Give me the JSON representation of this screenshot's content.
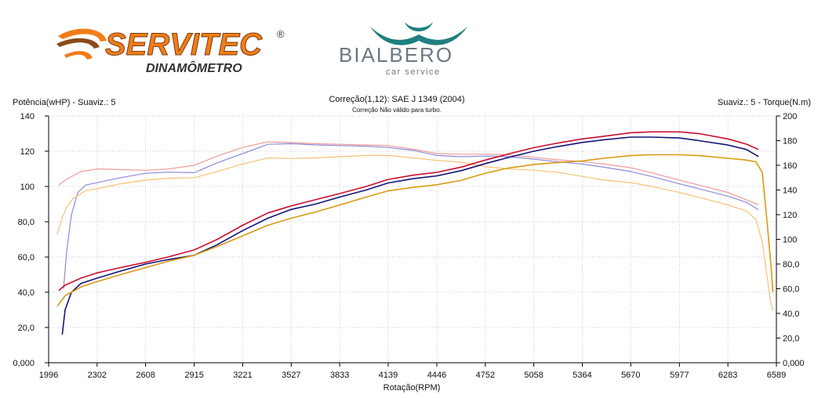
{
  "logos": {
    "servitec_name": "SERVITEC",
    "servitec_reg": "®",
    "servitec_sub": "DINAMÔMETRO",
    "bialbero_name": "BIALBERO",
    "bialbero_sub": "car service"
  },
  "header": {
    "left_label": "Potência(wHP) - Suaviz.: 5",
    "right_label": "Suaviz.: 5 - Torque(N.m)",
    "correction": "Correção(1,12): SAE J 1349 (2004)",
    "correction_note": "Correção Não válido para turbo."
  },
  "colors": {
    "power_run1": "#c8102e",
    "power_run2": "#14147a",
    "power_run3": "#d99a14",
    "torque_run1": "#f0989a",
    "torque_run2": "#8c8cd8",
    "torque_run3": "#f5c272",
    "grid": "#cccccc",
    "servitec_orange": "#f07d1a",
    "bialbero_teal": "#1f7f7f",
    "bialbero_gray": "#6c7883"
  },
  "chart_data": {
    "type": "line",
    "xlabel": "Rotação(RPM)",
    "ylabel": "Potência(wHP) - Suaviz.: 5",
    "y2label": "Suaviz.: 5 - Torque(N.m)",
    "xlim": [
      1996,
      6589
    ],
    "ylim": [
      0,
      140
    ],
    "y2lim": [
      0,
      200
    ],
    "grid": true,
    "x_ticks": [
      "1996",
      "2302",
      "2608",
      "2915",
      "3221",
      "3527",
      "3833",
      "4139",
      "4446",
      "4752",
      "5058",
      "5364",
      "5670",
      "5977",
      "6283",
      "6589"
    ],
    "y_ticks": [
      "0,000",
      "20,0",
      "40,0",
      "60,0",
      "80,0",
      "100",
      "120",
      "140"
    ],
    "y2_ticks": [
      "0,000",
      "20,0",
      "40,0",
      "60,0",
      "80,0",
      "100",
      "120",
      "140",
      "160",
      "180",
      "200"
    ],
    "power_series": [
      {
        "color_key": "power_run1",
        "points": [
          [
            2060,
            41
          ],
          [
            2100,
            44
          ],
          [
            2200,
            48
          ],
          [
            2302,
            51
          ],
          [
            2450,
            54
          ],
          [
            2608,
            57
          ],
          [
            2750,
            60
          ],
          [
            2915,
            64
          ],
          [
            3060,
            70
          ],
          [
            3221,
            78
          ],
          [
            3380,
            85
          ],
          [
            3527,
            89
          ],
          [
            3680,
            92.5
          ],
          [
            3833,
            96
          ],
          [
            4000,
            100
          ],
          [
            4139,
            104
          ],
          [
            4300,
            106.5
          ],
          [
            4446,
            108
          ],
          [
            4600,
            111
          ],
          [
            4752,
            115
          ],
          [
            4900,
            118.5
          ],
          [
            5058,
            122
          ],
          [
            5200,
            124.5
          ],
          [
            5364,
            127
          ],
          [
            5500,
            128.5
          ],
          [
            5670,
            130.5
          ],
          [
            5800,
            131
          ],
          [
            5977,
            131
          ],
          [
            6100,
            130
          ],
          [
            6283,
            127
          ],
          [
            6400,
            124
          ],
          [
            6476,
            121
          ]
        ]
      },
      {
        "color_key": "power_run2",
        "points": [
          [
            2082,
            16
          ],
          [
            2100,
            30
          ],
          [
            2140,
            40
          ],
          [
            2200,
            45
          ],
          [
            2302,
            48
          ],
          [
            2450,
            52
          ],
          [
            2608,
            56
          ],
          [
            2750,
            58.5
          ],
          [
            2915,
            61
          ],
          [
            3060,
            67
          ],
          [
            3221,
            75
          ],
          [
            3380,
            82
          ],
          [
            3527,
            87
          ],
          [
            3680,
            90
          ],
          [
            3833,
            94
          ],
          [
            4000,
            98
          ],
          [
            4139,
            102
          ],
          [
            4300,
            104.5
          ],
          [
            4446,
            106
          ],
          [
            4600,
            109
          ],
          [
            4752,
            113
          ],
          [
            4900,
            116.5
          ],
          [
            5058,
            120
          ],
          [
            5200,
            122.5
          ],
          [
            5364,
            125
          ],
          [
            5500,
            126.5
          ],
          [
            5670,
            128
          ],
          [
            5800,
            128
          ],
          [
            5977,
            127.5
          ],
          [
            6100,
            126
          ],
          [
            6283,
            123.5
          ],
          [
            6400,
            121
          ],
          [
            6476,
            117
          ]
        ]
      },
      {
        "color_key": "power_run3",
        "points": [
          [
            2050,
            32
          ],
          [
            2100,
            38
          ],
          [
            2200,
            43
          ],
          [
            2302,
            46
          ],
          [
            2450,
            50
          ],
          [
            2608,
            54
          ],
          [
            2750,
            57.5
          ],
          [
            2915,
            61
          ],
          [
            3060,
            66
          ],
          [
            3221,
            72
          ],
          [
            3380,
            78
          ],
          [
            3527,
            82
          ],
          [
            3680,
            85.5
          ],
          [
            3833,
            89.5
          ],
          [
            4000,
            94
          ],
          [
            4139,
            97.5
          ],
          [
            4300,
            99.5
          ],
          [
            4446,
            101
          ],
          [
            4600,
            103.5
          ],
          [
            4752,
            107.5
          ],
          [
            4900,
            110.5
          ],
          [
            5058,
            112.5
          ],
          [
            5200,
            113.5
          ],
          [
            5364,
            114.5
          ],
          [
            5500,
            116
          ],
          [
            5670,
            117.5
          ],
          [
            5800,
            118
          ],
          [
            5977,
            118
          ],
          [
            6100,
            117.5
          ],
          [
            6283,
            116
          ],
          [
            6400,
            115
          ],
          [
            6460,
            114
          ],
          [
            6500,
            108
          ],
          [
            6530,
            80
          ],
          [
            6555,
            55
          ],
          [
            6567,
            40
          ]
        ]
      }
    ],
    "torque_series": [
      {
        "color_key": "torque_run1",
        "points": [
          [
            2060,
            144
          ],
          [
            2100,
            148
          ],
          [
            2200,
            155
          ],
          [
            2302,
            157
          ],
          [
            2450,
            156.5
          ],
          [
            2608,
            156
          ],
          [
            2750,
            157
          ],
          [
            2915,
            160
          ],
          [
            3060,
            167.5
          ],
          [
            3221,
            174.5
          ],
          [
            3380,
            179
          ],
          [
            3527,
            178.5
          ],
          [
            3680,
            177.5
          ],
          [
            3833,
            177
          ],
          [
            4000,
            176.5
          ],
          [
            4139,
            176
          ],
          [
            4300,
            173
          ],
          [
            4446,
            169.5
          ],
          [
            4600,
            169
          ],
          [
            4752,
            169
          ],
          [
            4900,
            168.5
          ],
          [
            5058,
            166.5
          ],
          [
            5200,
            164.5
          ],
          [
            5364,
            163
          ],
          [
            5500,
            161
          ],
          [
            5670,
            158
          ],
          [
            5800,
            154
          ],
          [
            5977,
            148
          ],
          [
            6100,
            144
          ],
          [
            6283,
            138
          ],
          [
            6400,
            132
          ],
          [
            6476,
            128
          ]
        ]
      },
      {
        "color_key": "torque_run2",
        "points": [
          [
            2090,
            60
          ],
          [
            2110,
            90
          ],
          [
            2140,
            120
          ],
          [
            2180,
            138
          ],
          [
            2230,
            144
          ],
          [
            2302,
            146
          ],
          [
            2450,
            150
          ],
          [
            2608,
            153.5
          ],
          [
            2750,
            154.5
          ],
          [
            2915,
            154
          ],
          [
            3060,
            162
          ],
          [
            3221,
            169.5
          ],
          [
            3380,
            177
          ],
          [
            3527,
            177.5
          ],
          [
            3680,
            176.5
          ],
          [
            3833,
            176
          ],
          [
            4000,
            175.5
          ],
          [
            4139,
            174.5
          ],
          [
            4300,
            172
          ],
          [
            4446,
            168
          ],
          [
            4600,
            167
          ],
          [
            4752,
            167.5
          ],
          [
            4900,
            167
          ],
          [
            5058,
            165
          ],
          [
            5200,
            163
          ],
          [
            5364,
            161
          ],
          [
            5500,
            158.5
          ],
          [
            5670,
            155
          ],
          [
            5800,
            151
          ],
          [
            5977,
            145
          ],
          [
            6100,
            141
          ],
          [
            6283,
            135
          ],
          [
            6400,
            130
          ],
          [
            6476,
            124
          ]
        ]
      },
      {
        "color_key": "torque_run3",
        "points": [
          [
            2050,
            104
          ],
          [
            2080,
            117
          ],
          [
            2110,
            126
          ],
          [
            2150,
            133
          ],
          [
            2230,
            139.5
          ],
          [
            2302,
            141
          ],
          [
            2450,
            145
          ],
          [
            2608,
            148
          ],
          [
            2750,
            149.5
          ],
          [
            2915,
            150
          ],
          [
            3060,
            155
          ],
          [
            3221,
            161
          ],
          [
            3380,
            166
          ],
          [
            3527,
            165.5
          ],
          [
            3680,
            166
          ],
          [
            3833,
            167
          ],
          [
            4000,
            168
          ],
          [
            4139,
            168
          ],
          [
            4300,
            166
          ],
          [
            4446,
            164
          ],
          [
            4600,
            162.5
          ],
          [
            4752,
            159
          ],
          [
            4900,
            157
          ],
          [
            5058,
            156
          ],
          [
            5200,
            154.5
          ],
          [
            5364,
            151
          ],
          [
            5500,
            148
          ],
          [
            5670,
            146
          ],
          [
            5800,
            143
          ],
          [
            5977,
            138
          ],
          [
            6100,
            134
          ],
          [
            6283,
            128
          ],
          [
            6400,
            123
          ],
          [
            6460,
            116
          ],
          [
            6500,
            98
          ],
          [
            6530,
            70
          ],
          [
            6552,
            50
          ],
          [
            6567,
            42
          ]
        ]
      }
    ]
  }
}
